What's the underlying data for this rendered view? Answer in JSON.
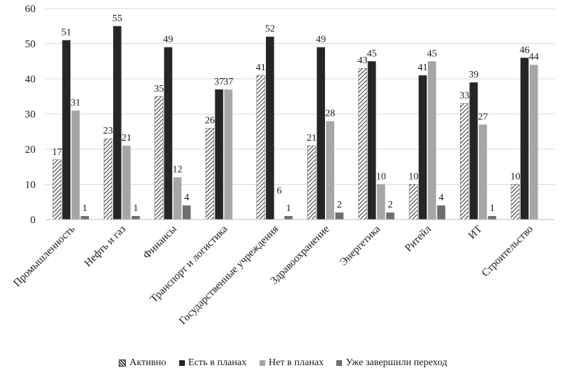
{
  "chart_data": {
    "type": "bar",
    "categories": [
      "Промышленность",
      "Нефть и газ",
      "Финансы",
      "Транспорт и логистика",
      "Государственные учреждения",
      "Здравоохранение",
      "Энергетика",
      "Ритейл",
      "ИТ",
      "Строительство"
    ],
    "series": [
      {
        "name": "Активно",
        "values": [
          17,
          23,
          35,
          26,
          41,
          21,
          43,
          10,
          33,
          10
        ],
        "color": "#ffffff",
        "pattern": "hatch"
      },
      {
        "name": "Есть в планах",
        "values": [
          51,
          55,
          49,
          37,
          52,
          49,
          45,
          41,
          39,
          46
        ],
        "color": "#262626"
      },
      {
        "name": "Нет в планах",
        "values": [
          31,
          21,
          12,
          37,
          null,
          28,
          10,
          45,
          27,
          44
        ],
        "color": "#a6a6a6"
      },
      {
        "name": "Уже завершили переход",
        "values": [
          1,
          1,
          4,
          null,
          1,
          2,
          2,
          4,
          1,
          null
        ],
        "color": "#6e6e6e"
      }
    ],
    "value_labels": [
      [
        "17",
        "23",
        "35",
        "26",
        "41",
        "21",
        "43",
        "10",
        "33",
        "10"
      ],
      [
        "51",
        "55",
        "49",
        "37",
        "52",
        "49",
        "45",
        "41",
        "39",
        "46"
      ],
      [
        "31",
        "21",
        "12",
        "37",
        "6",
        "28",
        "10",
        "45",
        "27",
        "44"
      ],
      [
        "1",
        "1",
        "4",
        "",
        "1",
        "2",
        "2",
        "4",
        "1",
        ""
      ]
    ],
    "ylim": [
      0,
      60
    ],
    "yticks": [
      "0",
      "10",
      "20",
      "30",
      "40",
      "50",
      "60"
    ],
    "gridlines": true,
    "legend": "bottom",
    "title": "",
    "xlabel": "",
    "ylabel": ""
  }
}
